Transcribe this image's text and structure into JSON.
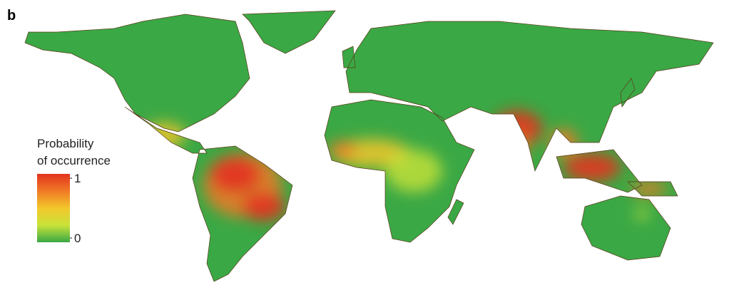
{
  "panel_label": "b",
  "legend": {
    "title": [
      "Probability",
      "of occurrence"
    ],
    "range": [
      0,
      1
    ],
    "ticks": [
      1,
      0
    ],
    "colors": [
      "#3aa845",
      "#c9e33a",
      "#f3c72b",
      "#f07a25",
      "#e3331f"
    ]
  }
}
